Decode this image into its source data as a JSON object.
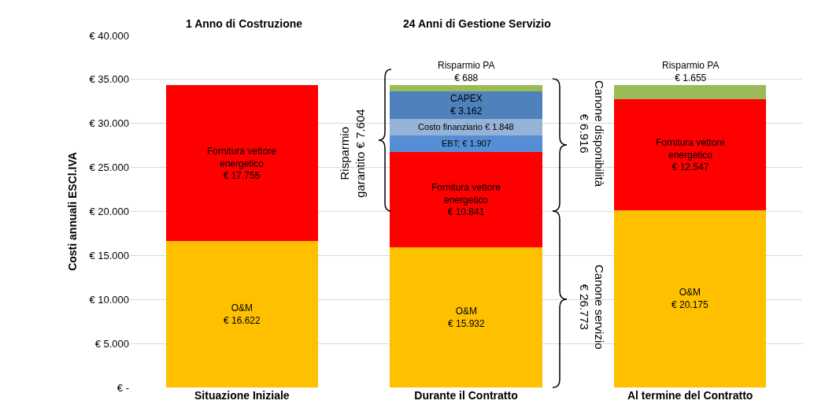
{
  "chart_data": {
    "type": "bar",
    "stacked": true,
    "categories": [
      "Situazione Iniziale",
      "Durante il Contratto",
      "Al termine del Contratto"
    ],
    "ylabel": "Costi annuali ESCl.IVA",
    "ylim": [
      0,
      40000
    ],
    "yticks": [
      {
        "value": 0,
        "label": "€ -"
      },
      {
        "value": 5000,
        "label": "€ 5.000"
      },
      {
        "value": 10000,
        "label": "€ 10.000"
      },
      {
        "value": 15000,
        "label": "€ 15.000"
      },
      {
        "value": 20000,
        "label": "€ 20.000"
      },
      {
        "value": 25000,
        "label": "€ 25.000"
      },
      {
        "value": 30000,
        "label": "€ 30.000"
      },
      {
        "value": 35000,
        "label": "€ 35.000"
      },
      {
        "value": 40000,
        "label": "€ 40.000"
      }
    ],
    "grid": "y",
    "series": [
      {
        "color": "#ffc000",
        "values": [
          16622,
          15932,
          20175
        ],
        "value_labels": [
          "O&M\n€ 16.622",
          "O&M\n€ 15.932",
          "O&M\n€ 20.175"
        ]
      },
      {
        "color": "#ff0000",
        "values": [
          17755,
          10841,
          12547
        ],
        "value_labels": [
          "Fornitura vettore\nenergetico\n€ 17.755",
          "Fornitura vettore\nenergetico\n€ 10.841",
          "Fornitura vettore\nenergetico\n€ 12.547"
        ]
      },
      {
        "color": "#558ed5",
        "values": [
          null,
          1907,
          null
        ],
        "value_labels": [
          null,
          "EBT; € 1.907",
          null
        ]
      },
      {
        "color": "#95b3d7",
        "values": [
          null,
          1848,
          null
        ],
        "value_labels": [
          null,
          "Costo finanziario\n€ 1.848",
          null
        ]
      },
      {
        "color": "#4f81bd",
        "values": [
          null,
          3162,
          null
        ],
        "value_labels": [
          null,
          "CAPEX\n€ 3.162",
          null
        ]
      },
      {
        "color": "#9bbb59",
        "values": [
          null,
          688,
          1655
        ],
        "value_labels": [
          null,
          "Risparmio PA\n€ 688",
          "Risparmio PA\n€ 1.655"
        ]
      }
    ],
    "annotations": [
      "1 Anno di Costruzione",
      "24 Anni di Gestione Servizio",
      "Risparmio\ngarantito € 7.604",
      "Canone disponibilità\n€ 6.916",
      "Canone servizio\n€ 26.773"
    ]
  }
}
